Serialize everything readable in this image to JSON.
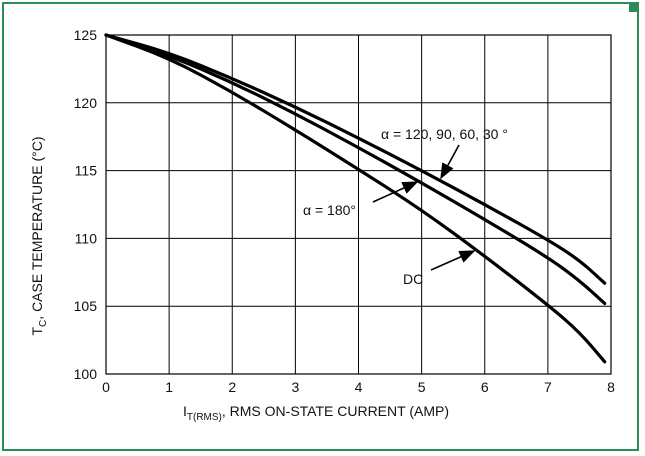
{
  "colors": {
    "border": "#2e8b57",
    "grid": "#000000",
    "curve": "#000000",
    "text": "#111111"
  },
  "chart_data": {
    "type": "line",
    "title": "",
    "xlabel_main": "I",
    "xlabel_sub": "T(RMS)",
    "xlabel_rest": ", RMS ON-STATE CURRENT (AMP)",
    "ylabel_main": "T",
    "ylabel_sub": "C",
    "ylabel_rest": ", CASE TEMPERATURE (°C)",
    "xlim": [
      0,
      8
    ],
    "ylim": [
      100,
      125
    ],
    "xticks": [
      0,
      1,
      2,
      3,
      4,
      5,
      6,
      7,
      8
    ],
    "yticks": [
      100,
      105,
      110,
      115,
      120,
      125
    ],
    "grid": true,
    "series": [
      {
        "name": "α = 120, 90, 60, 30 °",
        "x": [
          0,
          1,
          2,
          3,
          4,
          5,
          6,
          7,
          7.5,
          7.9
        ],
        "y": [
          125,
          123.7,
          121.8,
          119.7,
          117.4,
          115.0,
          112.5,
          109.9,
          108.4,
          106.7
        ]
      },
      {
        "name": "α = 180°",
        "x": [
          0,
          1,
          2,
          3,
          4,
          5,
          6,
          7,
          7.5,
          7.9
        ],
        "y": [
          125,
          123.5,
          121.5,
          119.2,
          116.7,
          114.1,
          111.4,
          108.6,
          106.9,
          105.2
        ]
      },
      {
        "name": "DC",
        "x": [
          0,
          1,
          2,
          3,
          4,
          5,
          6,
          7,
          7.5,
          7.9
        ],
        "y": [
          125,
          123.3,
          120.8,
          118.0,
          115.1,
          112.1,
          108.7,
          105.1,
          103.1,
          100.9
        ]
      }
    ],
    "annotations": [
      {
        "label": "α = 120, 90, 60, 30 °",
        "series": 0
      },
      {
        "label": "α = 180°",
        "series": 1
      },
      {
        "label": "DC",
        "series": 2
      }
    ]
  }
}
